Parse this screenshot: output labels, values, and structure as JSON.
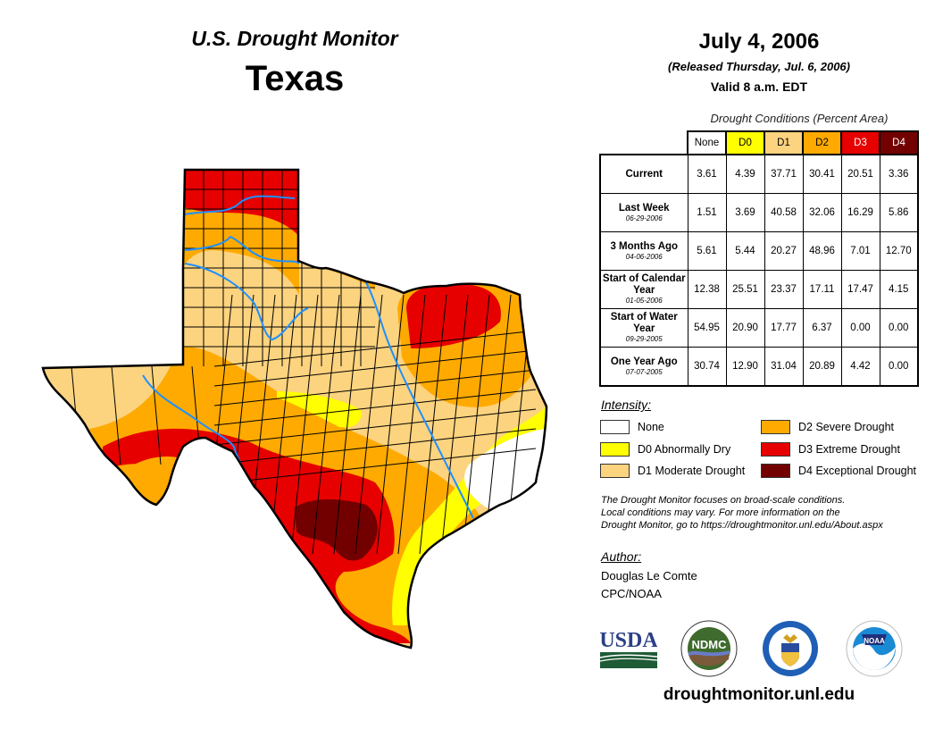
{
  "header": {
    "title": "U.S. Drought Monitor",
    "state": "Texas",
    "date": "July 4, 2006",
    "released": "(Released Thursday, Jul. 6, 2006)",
    "valid": "Valid 8 a.m. EDT"
  },
  "table": {
    "caption": "Drought Conditions (Percent Area)",
    "columns": [
      {
        "label": "None",
        "color": "#ffffff",
        "text_color": "#000000"
      },
      {
        "label": "D0",
        "color": "#ffff00",
        "text_color": "#000000"
      },
      {
        "label": "D1",
        "color": "#fcd37f",
        "text_color": "#000000"
      },
      {
        "label": "D2",
        "color": "#ffaa00",
        "text_color": "#000000"
      },
      {
        "label": "D3",
        "color": "#e60000",
        "text_color": "#ffffff"
      },
      {
        "label": "D4",
        "color": "#730000",
        "text_color": "#ffffff"
      }
    ],
    "rows": [
      {
        "label": "Current",
        "date": "",
        "values": [
          "3.61",
          "4.39",
          "37.71",
          "30.41",
          "20.51",
          "3.36"
        ]
      },
      {
        "label": "Last Week",
        "date": "06-29-2006",
        "values": [
          "1.51",
          "3.69",
          "40.58",
          "32.06",
          "16.29",
          "5.86"
        ]
      },
      {
        "label": "3 Months Ago",
        "date": "04-06-2006",
        "values": [
          "5.61",
          "5.44",
          "20.27",
          "48.96",
          "7.01",
          "12.70"
        ]
      },
      {
        "label": "Start of Calendar Year",
        "date": "01-05-2006",
        "values": [
          "12.38",
          "25.51",
          "23.37",
          "17.11",
          "17.47",
          "4.15"
        ]
      },
      {
        "label": "Start of Water Year",
        "date": "09-29-2005",
        "values": [
          "54.95",
          "20.90",
          "17.77",
          "6.37",
          "0.00",
          "0.00"
        ]
      },
      {
        "label": "One Year Ago",
        "date": "07-07-2005",
        "values": [
          "30.74",
          "12.90",
          "31.04",
          "20.89",
          "4.42",
          "0.00"
        ]
      }
    ]
  },
  "legend": {
    "title": "Intensity:",
    "items": [
      {
        "label": "None",
        "color": "#ffffff"
      },
      {
        "label": "D0 Abnormally Dry",
        "color": "#ffff00"
      },
      {
        "label": "D1 Moderate Drought",
        "color": "#fcd37f"
      },
      {
        "label": "D2 Severe Drought",
        "color": "#ffaa00"
      },
      {
        "label": "D3 Extreme Drought",
        "color": "#e60000"
      },
      {
        "label": "D4 Exceptional Drought",
        "color": "#730000"
      }
    ]
  },
  "note": {
    "lines": [
      "The Drought Monitor focuses on broad-scale conditions.",
      "Local conditions may vary. For more information on the",
      "Drought Monitor, go to https://droughtmonitor.unl.edu/About.aspx"
    ]
  },
  "author": {
    "title": "Author:",
    "name": "Douglas Le Comte",
    "org": "CPC/NOAA"
  },
  "logos": [
    {
      "name": "usda",
      "text": "USDA"
    },
    {
      "name": "ndmc",
      "text": "NDMC"
    },
    {
      "name": "commerce",
      "text": ""
    },
    {
      "name": "noaa",
      "text": "NOAA"
    }
  ],
  "footer": {
    "website": "droughtmonitor.unl.edu"
  },
  "map": {
    "river_color": "#1e90ff",
    "colors": {
      "none": "#ffffff",
      "d0": "#ffff00",
      "d1": "#fcd37f",
      "d2": "#ffaa00",
      "d3": "#e60000",
      "d4": "#730000"
    }
  }
}
